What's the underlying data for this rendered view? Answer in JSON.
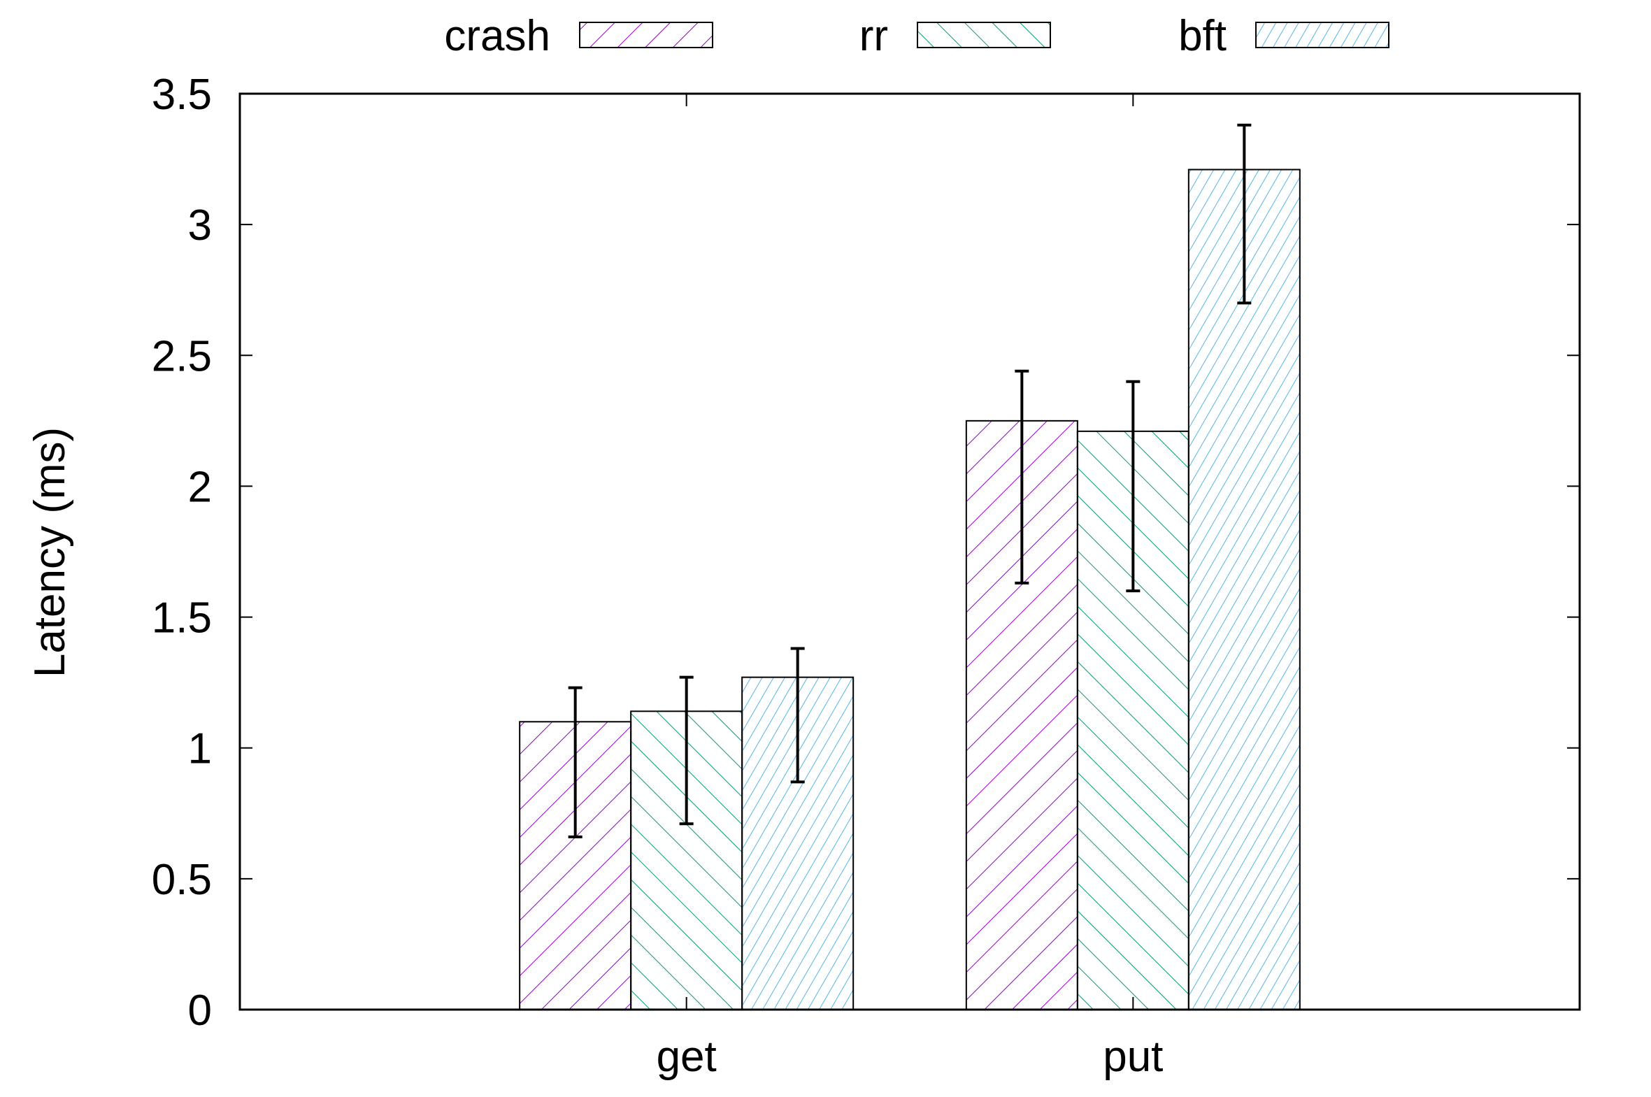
{
  "chart_data": {
    "type": "bar",
    "title": "",
    "xlabel": "",
    "ylabel": "Latency (ms)",
    "ylim": [
      0,
      3.5
    ],
    "yticks": [
      0,
      0.5,
      1,
      1.5,
      2,
      2.5,
      3,
      3.5
    ],
    "ytick_labels": [
      "0",
      "0.5",
      "1",
      "1.5",
      "2",
      "2.5",
      "3",
      "3.5"
    ],
    "categories": [
      "get",
      "put"
    ],
    "grid": false,
    "legend_position": "top-center",
    "error_bars": true,
    "series": [
      {
        "name": "crash",
        "color": "#9400d3",
        "hatch": "backslash",
        "values": [
          1.1,
          2.25
        ],
        "err_low": [
          0.66,
          1.63
        ],
        "err_high": [
          1.23,
          2.44
        ]
      },
      {
        "name": "rr",
        "color": "#009e73",
        "hatch": "slash",
        "values": [
          1.14,
          2.21
        ],
        "err_low": [
          0.71,
          1.6
        ],
        "err_high": [
          1.27,
          2.4
        ]
      },
      {
        "name": "bft",
        "color": "#56b4e9",
        "hatch": "backslash-dense",
        "values": [
          1.27,
          3.21
        ],
        "err_low": [
          0.87,
          2.7
        ],
        "err_high": [
          1.38,
          3.38
        ]
      }
    ]
  }
}
